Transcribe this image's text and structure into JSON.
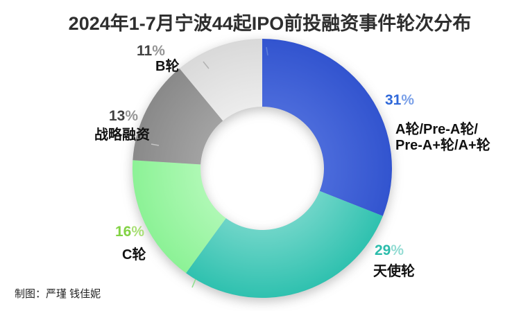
{
  "title": {
    "text": "2024年1-7月宁波44起IPO前投融资事件轮次分布",
    "color": "#2e2e2e"
  },
  "credit": {
    "text": "制图：严瑾 钱佳妮",
    "color": "#222222"
  },
  "chart_data": {
    "type": "pie",
    "subtype": "donut",
    "title": "2024年1-7月宁波44起IPO前投融资事件轮次分布",
    "total_events": 44,
    "unit": "%",
    "start_angle_deg": 0,
    "direction": "clockwise",
    "inner_radius_ratio": 0.476,
    "legend": "none (outside callout labels with leader ticks)",
    "segments": [
      {
        "label": "A轮/Pre-A轮/Pre-A+轮/A+轮",
        "value_pct": 31,
        "color": "#3254cf",
        "color_inner": "#4b6bdb",
        "pct_num_color": "#2f68d9",
        "pct_sign_color": "#7aa0e8",
        "label_color": "#111111"
      },
      {
        "label": "天使轮",
        "value_pct": 29,
        "color": "#2fc1af",
        "color_inner": "#6ed5c8",
        "pct_num_color": "#2bbcab",
        "pct_sign_color": "#93dcd3",
        "label_color": "#111111"
      },
      {
        "label": "C轮",
        "value_pct": 16,
        "color": "#8cf296",
        "color_inner": "#aef8b4",
        "pct_num_color": "#82d244",
        "pct_sign_color": "#a9df76",
        "label_color": "#111111"
      },
      {
        "label": "战略融资",
        "value_pct": 13,
        "color": "#898989",
        "color_inner": "#a2a2a2",
        "pct_num_color": "#424242",
        "pct_sign_color": "#949494",
        "label_color": "#111111"
      },
      {
        "label": "B轮",
        "value_pct": 11,
        "color": "#d9d9d9",
        "color_inner": "#ececec",
        "pct_num_color": "#424242",
        "pct_sign_color": "#949494",
        "label_color": "#111111"
      }
    ]
  },
  "callouts": [
    {
      "pct_num": "31",
      "pct_sign": "%",
      "line1": "A轮/Pre-A轮/",
      "line2": "Pre-A+轮/A+轮"
    },
    {
      "pct_num": "29",
      "pct_sign": "%",
      "line1": "天使轮"
    },
    {
      "pct_num": "16",
      "pct_sign": "%",
      "line1": "C轮"
    },
    {
      "pct_num": "13",
      "pct_sign": "%",
      "line1": "战略融资"
    },
    {
      "pct_num": "11",
      "pct_sign": "%",
      "line1": "B轮"
    }
  ]
}
